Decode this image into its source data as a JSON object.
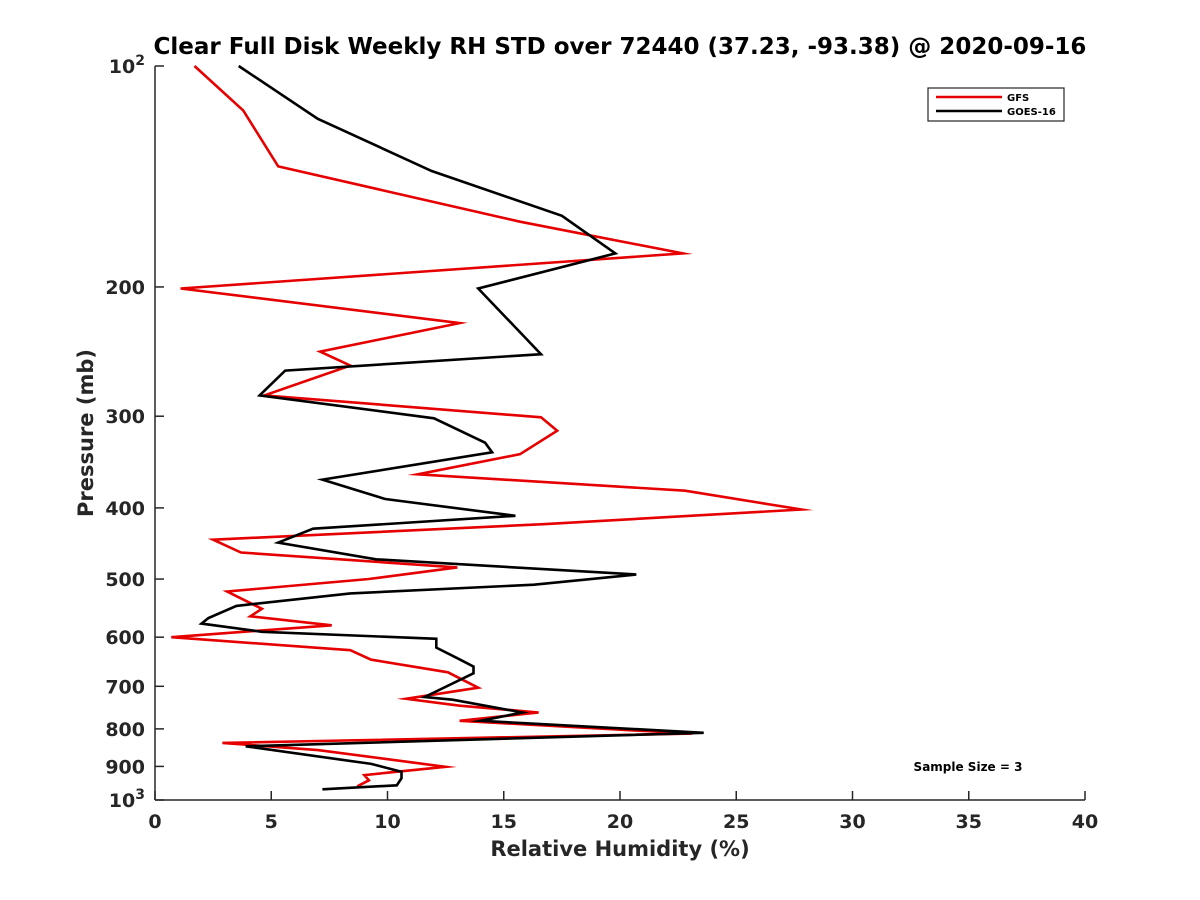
{
  "chart_data": {
    "type": "line",
    "title": "Clear Full Disk Weekly RH STD over 72440 (37.23, -93.38) @ 2020-09-16",
    "xlabel": "Relative Humidity (%)",
    "ylabel": "Pressure (mb)",
    "xlim": [
      0,
      40
    ],
    "ylim": [
      100,
      1000
    ],
    "y_scale": "log",
    "y_reversed": true,
    "x_ticks": [
      "0",
      "5",
      "10",
      "15",
      "20",
      "25",
      "30",
      "35",
      "40"
    ],
    "y_ticks": [
      {
        "value": 100,
        "base": "10",
        "exp": "2"
      },
      {
        "value": 200,
        "label": "200"
      },
      {
        "value": 300,
        "label": "300"
      },
      {
        "value": 400,
        "label": "400"
      },
      {
        "value": 500,
        "label": "500"
      },
      {
        "value": 600,
        "label": "600"
      },
      {
        "value": 700,
        "label": "700"
      },
      {
        "value": 800,
        "label": "800"
      },
      {
        "value": 900,
        "label": "900"
      },
      {
        "value": 1000,
        "base": "10",
        "exp": "3"
      }
    ],
    "grid": false,
    "legend": "top-right",
    "annotation": "Sample Size = 3",
    "series": [
      {
        "name": "GFS",
        "color": "#e60000",
        "points": [
          [
            1.7,
            100
          ],
          [
            3.8,
            115
          ],
          [
            5.3,
            137
          ],
          [
            15.7,
            163
          ],
          [
            22.7,
            180
          ],
          [
            1.1,
            201
          ],
          [
            13.1,
            224
          ],
          [
            7.1,
            245
          ],
          [
            8.4,
            256
          ],
          [
            4.7,
            281
          ],
          [
            16.6,
            301
          ],
          [
            17.3,
            314
          ],
          [
            15.7,
            338
          ],
          [
            11.3,
            360
          ],
          [
            22.8,
            379
          ],
          [
            27.8,
            402
          ],
          [
            16.7,
            421
          ],
          [
            2.5,
            442
          ],
          [
            3.7,
            460
          ],
          [
            13.0,
            482
          ],
          [
            9.2,
            500
          ],
          [
            3.1,
            520
          ],
          [
            4.6,
            549
          ],
          [
            4.1,
            562
          ],
          [
            7.6,
            578
          ],
          [
            0.7,
            600
          ],
          [
            8.4,
            625
          ],
          [
            9.3,
            644
          ],
          [
            12.6,
            670
          ],
          [
            13.9,
            703
          ],
          [
            10.8,
            728
          ],
          [
            13.1,
            744
          ],
          [
            16.5,
            760
          ],
          [
            13.1,
            780
          ],
          [
            23.1,
            812
          ],
          [
            2.9,
            836
          ],
          [
            7.0,
            855
          ],
          [
            12.5,
            901
          ],
          [
            10.0,
            918
          ],
          [
            9.0,
            925
          ],
          [
            9.2,
            940
          ],
          [
            8.7,
            958
          ]
        ]
      },
      {
        "name": "GOES-16",
        "color": "#000000",
        "points": [
          [
            3.6,
            100
          ],
          [
            7.0,
            118
          ],
          [
            11.9,
            139
          ],
          [
            17.5,
            160
          ],
          [
            19.8,
            180
          ],
          [
            13.9,
            201
          ],
          [
            16.6,
            247
          ],
          [
            5.6,
            260
          ],
          [
            4.5,
            281
          ],
          [
            12.0,
            302
          ],
          [
            14.2,
            326
          ],
          [
            14.5,
            336
          ],
          [
            7.2,
            366
          ],
          [
            9.9,
            389
          ],
          [
            15.5,
            410
          ],
          [
            6.8,
            427
          ],
          [
            5.3,
            446
          ],
          [
            9.5,
            470
          ],
          [
            20.7,
            493
          ],
          [
            16.3,
            509
          ],
          [
            8.4,
            523
          ],
          [
            3.5,
            544
          ],
          [
            2.3,
            565
          ],
          [
            2.0,
            575
          ],
          [
            4.6,
            590
          ],
          [
            12.1,
            603
          ],
          [
            12.1,
            620
          ],
          [
            13.0,
            641
          ],
          [
            13.7,
            658
          ],
          [
            13.7,
            672
          ],
          [
            11.6,
            724
          ],
          [
            12.8,
            730
          ],
          [
            15.8,
            760
          ],
          [
            14.0,
            780
          ],
          [
            23.6,
            810
          ],
          [
            3.9,
            845
          ],
          [
            9.3,
            893
          ],
          [
            10.6,
            915
          ],
          [
            10.6,
            934
          ],
          [
            10.4,
            955
          ],
          [
            7.2,
            967
          ]
        ]
      }
    ]
  }
}
